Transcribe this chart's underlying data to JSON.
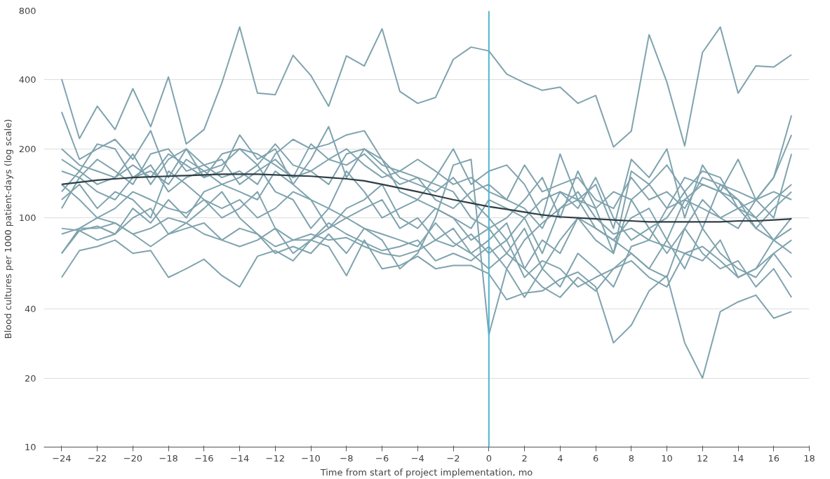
{
  "chart_data": {
    "type": "line",
    "xlabel": "Time from start of project implementation, mo",
    "ylabel": "Blood cultures per 1000 patient-days (log scale)",
    "x": [
      -24,
      -23,
      -22,
      -21,
      -20,
      -19,
      -18,
      -17,
      -16,
      -15,
      -14,
      -13,
      -12,
      -11,
      -10,
      -9,
      -8,
      -7,
      -6,
      -5,
      -4,
      -3,
      -2,
      -1,
      0,
      1,
      2,
      3,
      4,
      5,
      6,
      7,
      8,
      9,
      10,
      11,
      12,
      13,
      14,
      15,
      16,
      17
    ],
    "series": [
      {
        "color": "#7fa3ae",
        "values": [
          403,
          222,
          307,
          243,
          366,
          250,
          412,
          210,
          243,
          388,
          680,
          350,
          345,
          512,
          418,
          307,
          509,
          460,
          668,
          356,
          316,
          335,
          491,
          556,
          535,
          424,
          388,
          360,
          372,
          316,
          342,
          204,
          239,
          630,
          391,
          206,
          527,
          680,
          350,
          460,
          455,
          515
        ]
      },
      {
        "color": "#7fa3ae",
        "values": [
          55,
          72,
          75,
          80,
          70,
          72,
          55,
          60,
          66,
          56,
          50,
          68,
          72,
          65,
          80,
          75,
          56,
          80,
          60,
          62,
          68,
          60,
          62,
          62,
          57,
          44,
          47,
          48,
          54,
          58,
          50,
          28.5,
          34,
          48,
          56,
          28.5,
          20,
          39,
          43,
          46,
          36.5,
          39
        ]
      },
      {
        "color": "#7fa3ae",
        "values": [
          90,
          88,
          92,
          85,
          110,
          95,
          120,
          100,
          130,
          140,
          150,
          170,
          130,
          120,
          90,
          110,
          100,
          90,
          80,
          60,
          70,
          100,
          170,
          180,
          31,
          60,
          80,
          95,
          110,
          130,
          100,
          85,
          90,
          80,
          110,
          150,
          140,
          130,
          120,
          100,
          80,
          90
        ]
      },
      {
        "color": "#7fa3ae",
        "values": [
          290,
          180,
          200,
          220,
          180,
          240,
          150,
          200,
          150,
          160,
          230,
          180,
          200,
          140,
          180,
          250,
          150,
          200,
          180,
          130,
          120,
          150,
          200,
          140,
          160,
          170,
          140,
          100,
          190,
          120,
          140,
          90,
          180,
          150,
          200,
          100,
          170,
          130,
          180,
          120,
          150,
          280
        ]
      },
      {
        "color": "#7fa3ae",
        "values": [
          200,
          170,
          160,
          150,
          190,
          140,
          180,
          200,
          170,
          150,
          160,
          140,
          190,
          220,
          200,
          210,
          230,
          240,
          180,
          150,
          140,
          130,
          150,
          120,
          100,
          80,
          100,
          70,
          110,
          120,
          90,
          80,
          100,
          110,
          80,
          120,
          110,
          100,
          90,
          120,
          150,
          230
        ]
      },
      {
        "color": "#7fa3ae",
        "values": [
          120,
          140,
          110,
          130,
          120,
          100,
          160,
          140,
          120,
          100,
          110,
          130,
          90,
          80,
          80,
          90,
          100,
          110,
          120,
          90,
          100,
          80,
          90,
          70,
          60,
          70,
          90,
          60,
          80,
          100,
          80,
          70,
          120,
          90,
          70,
          90,
          120,
          100,
          110,
          90,
          80,
          100
        ]
      },
      {
        "color": "#7fa3ae",
        "values": [
          70,
          90,
          100,
          95,
          85,
          90,
          100,
          95,
          110,
          130,
          100,
          85,
          75,
          80,
          85,
          80,
          82,
          75,
          70,
          68,
          72,
          80,
          75,
          85,
          70,
          80,
          55,
          65,
          60,
          50,
          55,
          60,
          70,
          60,
          55,
          90,
          70,
          60,
          65,
          50,
          60,
          45
        ]
      },
      {
        "color": "#7fa3ae",
        "values": [
          160,
          150,
          180,
          160,
          140,
          190,
          200,
          160,
          170,
          180,
          140,
          160,
          180,
          150,
          210,
          180,
          170,
          190,
          160,
          140,
          150,
          120,
          110,
          130,
          140,
          120,
          110,
          90,
          130,
          110,
          150,
          100,
          80,
          90,
          100,
          130,
          90,
          140,
          120,
          90,
          110,
          130
        ]
      },
      {
        "color": "#7fa3ae",
        "values": [
          70,
          88,
          80,
          85,
          100,
          110,
          85,
          95,
          85,
          80,
          90,
          85,
          70,
          75,
          70,
          85,
          70,
          90,
          85,
          80,
          75,
          95,
          78,
          70,
          80,
          95,
          60,
          50,
          45,
          55,
          48,
          60,
          65,
          55,
          50,
          70,
          65,
          80,
          55,
          60,
          80,
          70
        ]
      },
      {
        "color": "#7fa3ae",
        "values": [
          110,
          150,
          130,
          120,
          150,
          160,
          140,
          180,
          160,
          140,
          130,
          120,
          160,
          140,
          120,
          110,
          160,
          130,
          100,
          110,
          120,
          110,
          100,
          90,
          120,
          110,
          100,
          120,
          130,
          120,
          110,
          130,
          120,
          140,
          110,
          120,
          140,
          130,
          110,
          120,
          130,
          120
        ]
      },
      {
        "color": "#7fa3ae",
        "values": [
          180,
          160,
          210,
          200,
          150,
          170,
          130,
          150,
          160,
          170,
          200,
          190,
          170,
          150,
          160,
          180,
          200,
          170,
          150,
          160,
          150,
          140,
          130,
          100,
          90,
          100,
          120,
          150,
          100,
          160,
          110,
          70,
          160,
          140,
          170,
          130,
          160,
          150,
          110,
          100,
          120,
          140
        ]
      },
      {
        "color": "#7fa3ae",
        "values": [
          140,
          120,
          100,
          110,
          130,
          120,
          110,
          105,
          120,
          110,
          120,
          100,
          110,
          130,
          120,
          90,
          110,
          120,
          140,
          100,
          90,
          110,
          100,
          80,
          90,
          70,
          60,
          80,
          70,
          100,
          90,
          80,
          70,
          60,
          80,
          60,
          90,
          70,
          60,
          55,
          70,
          80
        ]
      },
      {
        "color": "#7fa3ae",
        "values": [
          85,
          90,
          90,
          95,
          85,
          75,
          85,
          90,
          95,
          80,
          75,
          80,
          90,
          70,
          80,
          95,
          85,
          78,
          72,
          75,
          80,
          65,
          70,
          65,
          75,
          60,
          45,
          60,
          50,
          70,
          60,
          50,
          75,
          80,
          75,
          70,
          75,
          65,
          55,
          60,
          70,
          55
        ]
      },
      {
        "color": "#7fa3ae",
        "values": [
          130,
          160,
          140,
          150,
          170,
          150,
          190,
          170,
          150,
          190,
          200,
          170,
          210,
          170,
          160,
          140,
          190,
          200,
          170,
          160,
          180,
          160,
          140,
          150,
          130,
          120,
          170,
          130,
          140,
          150,
          120,
          110,
          150,
          120,
          130,
          110,
          150,
          140,
          130,
          120,
          100,
          190
        ]
      },
      {
        "color": "#2f3e46",
        "values": [
          140,
          143,
          146,
          148,
          150,
          151,
          152,
          153,
          154,
          155,
          155,
          155,
          154,
          153,
          152,
          150,
          148,
          145,
          140,
          135,
          130,
          125,
          120,
          116,
          112,
          109,
          106,
          103,
          101,
          100,
          99,
          98,
          97,
          96,
          96,
          96,
          96,
          96,
          97,
          97,
          98,
          99
        ]
      }
    ],
    "xlim": [
      -25,
      18
    ],
    "xticks": [
      -24,
      -22,
      -20,
      -18,
      -16,
      -14,
      -12,
      -10,
      -8,
      -6,
      -4,
      -2,
      0,
      2,
      4,
      6,
      8,
      10,
      12,
      14,
      16,
      18
    ],
    "ylim": [
      10,
      800
    ],
    "yticks": [
      10,
      20,
      40,
      100,
      200,
      400,
      800
    ],
    "log": "y",
    "grid": "y",
    "ref_lines": [
      {
        "axis": "x",
        "value": 0,
        "color": "#4fb3cf"
      }
    ]
  }
}
